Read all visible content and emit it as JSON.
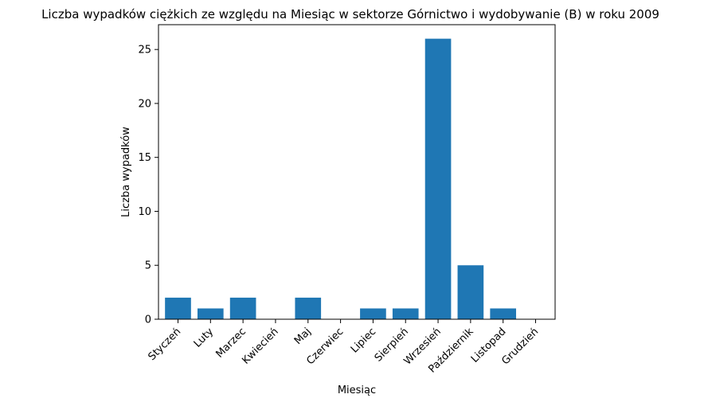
{
  "chart_data": {
    "type": "bar",
    "title": "Liczba wypadków ciężkich ze względu na Miesiąc w sektorze Górnictwo i wydobywanie (B)   w roku 2009",
    "xlabel": "Miesiąc",
    "ylabel": "Liczba wypadków",
    "categories": [
      "Styczeń",
      "Luty",
      "Marzec",
      "Kwiecień",
      "Maj",
      "Czerwiec",
      "Lipiec",
      "Sierpień",
      "Wrzesień",
      "Październik",
      "Listopad",
      "Grudzień"
    ],
    "values": [
      2,
      1,
      2,
      0,
      2,
      0,
      1,
      1,
      26,
      5,
      1,
      0
    ],
    "ylim": [
      0,
      27.3
    ],
    "yticks": [
      0,
      5,
      10,
      15,
      20,
      25
    ],
    "bar_color": "#1f77b4",
    "grid": false,
    "legend": "none"
  }
}
